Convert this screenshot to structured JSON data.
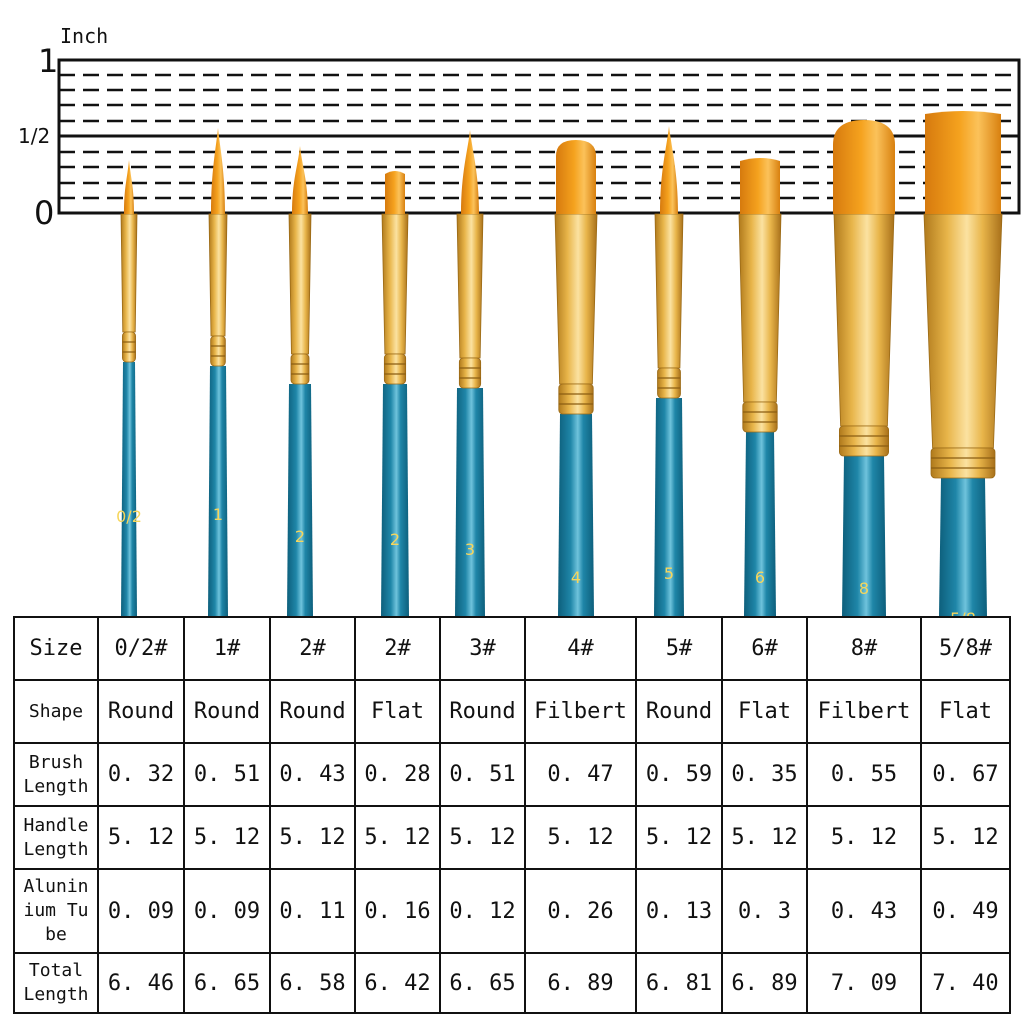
{
  "ruler": {
    "unit": "Inch",
    "labels": {
      "top": "1",
      "middle": "1/2",
      "bottom": "0"
    }
  },
  "brushes": [
    {
      "id": "b1",
      "handle_number": "0/2",
      "tip": "Round"
    },
    {
      "id": "b2",
      "handle_number": "1",
      "tip": "Round"
    },
    {
      "id": "b3",
      "handle_number": "2",
      "tip": "Round"
    },
    {
      "id": "b4",
      "handle_number": "2",
      "tip": "Flat"
    },
    {
      "id": "b5",
      "handle_number": "3",
      "tip": "Round"
    },
    {
      "id": "b6",
      "handle_number": "4",
      "tip": "Filbert"
    },
    {
      "id": "b7",
      "handle_number": "5",
      "tip": "Round"
    },
    {
      "id": "b8",
      "handle_number": "6",
      "tip": "Flat"
    },
    {
      "id": "b9",
      "handle_number": "8",
      "tip": "Filbert"
    },
    {
      "id": "b10",
      "handle_number": "5/8",
      "tip": "Flat"
    }
  ],
  "colors": {
    "handle": "#1f86a8",
    "handle_dark": "#0d5f7c",
    "ferrule": "#e8b54a",
    "ferrule_light": "#fbe2a1",
    "bristle": "#f5a21e",
    "bristle_light": "#fbc25a",
    "ruler_line": "#111111"
  },
  "table": {
    "rows": [
      {
        "label": "Size",
        "values": [
          "0/2#",
          "1#",
          "2#",
          "2#",
          "3#",
          "4#",
          "5#",
          "6#",
          "8#",
          "5/8#"
        ]
      },
      {
        "label": "Shape",
        "values": [
          "Round",
          "Round",
          "Round",
          "Flat",
          "Round",
          "Filbert",
          "Round",
          "Flat",
          "Filbert",
          "Flat"
        ]
      },
      {
        "label": "Brush Length",
        "values": [
          "0. 32",
          "0. 51",
          "0. 43",
          "0. 28",
          "0. 51",
          "0. 47",
          "0. 59",
          "0. 35",
          "0. 55",
          "0. 67"
        ]
      },
      {
        "label": "Handle Length",
        "values": [
          "5. 12",
          "5. 12",
          "5. 12",
          "5. 12",
          "5. 12",
          "5. 12",
          "5. 12",
          "5. 12",
          "5. 12",
          "5. 12"
        ]
      },
      {
        "label": "Aluninium Tube",
        "values": [
          "0. 09",
          "0. 09",
          "0. 11",
          "0. 16",
          "0. 12",
          "0. 26",
          "0. 13",
          "0. 3",
          "0. 43",
          "0. 49"
        ]
      },
      {
        "label": "Total Length",
        "values": [
          "6. 46",
          "6. 65",
          "6. 58",
          "6. 42",
          "6. 65",
          "6. 89",
          "6. 81",
          "6. 89",
          "7. 09",
          "7. 40"
        ]
      }
    ]
  }
}
